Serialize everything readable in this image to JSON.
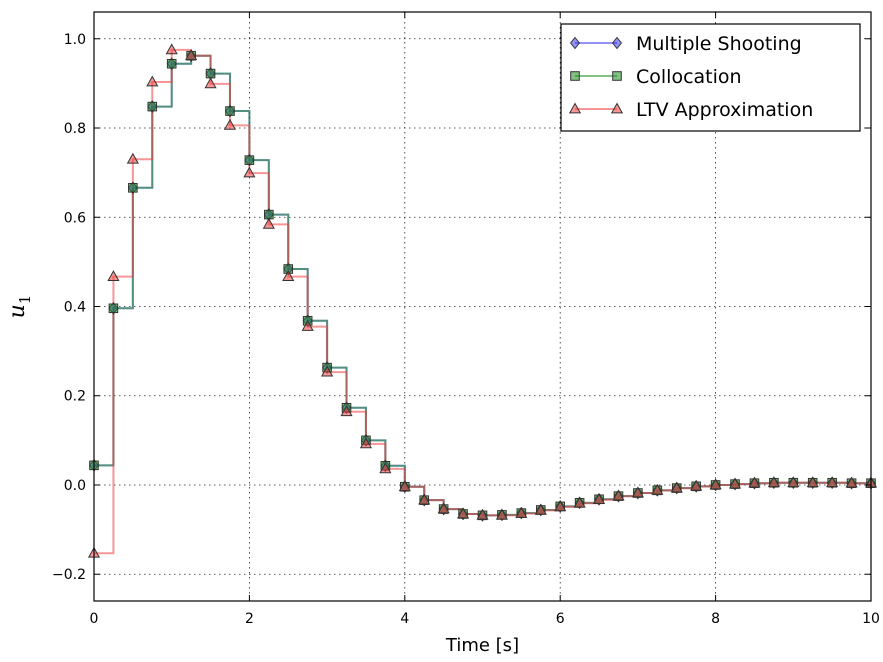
{
  "chart_data": {
    "type": "line",
    "title": "",
    "xlabel": "Time [s]",
    "ylabel": "u",
    "ylabel_sub": "1",
    "xlim": [
      0,
      10
    ],
    "ylim": [
      -0.26,
      1.06
    ],
    "xticks": [
      0,
      2,
      4,
      6,
      8,
      10
    ],
    "yticks": [
      -0.2,
      0.0,
      0.2,
      0.4,
      0.6,
      0.8,
      1.0
    ],
    "xtick_labels": [
      "0",
      "2",
      "4",
      "6",
      "8",
      "10"
    ],
    "ytick_labels": [
      "−0.2",
      "0.0",
      "0.2",
      "0.4",
      "0.6",
      "0.8",
      "1.0"
    ],
    "grid": true,
    "legend_position": "top-right",
    "step": "post",
    "x": [
      0.0,
      0.25,
      0.5,
      0.75,
      1.0,
      1.25,
      1.5,
      1.75,
      2.0,
      2.25,
      2.5,
      2.75,
      3.0,
      3.25,
      3.5,
      3.75,
      4.0,
      4.25,
      4.5,
      4.75,
      5.0,
      5.25,
      5.5,
      5.75,
      6.0,
      6.25,
      6.5,
      6.75,
      7.0,
      7.25,
      7.5,
      7.75,
      8.0,
      8.25,
      8.5,
      8.75,
      9.0,
      9.25,
      9.5,
      9.75,
      10.0
    ],
    "series": [
      {
        "name": "Multiple Shooting",
        "color": "#3a3aef",
        "marker": "diamond",
        "values": [
          0.044,
          0.396,
          0.666,
          0.848,
          0.944,
          0.962,
          0.922,
          0.838,
          0.728,
          0.606,
          0.484,
          0.368,
          0.263,
          0.173,
          0.1,
          0.043,
          -0.004,
          -0.034,
          -0.054,
          -0.065,
          -0.068,
          -0.067,
          -0.063,
          -0.056,
          -0.048,
          -0.04,
          -0.032,
          -0.025,
          -0.018,
          -0.012,
          -0.007,
          -0.003,
          0.0,
          0.002,
          0.004,
          0.005,
          0.005,
          0.005,
          0.005,
          0.004,
          0.004
        ]
      },
      {
        "name": "Collocation",
        "color": "#1e8c1e",
        "marker": "square",
        "values": [
          0.044,
          0.396,
          0.666,
          0.848,
          0.944,
          0.962,
          0.922,
          0.838,
          0.728,
          0.606,
          0.484,
          0.368,
          0.263,
          0.173,
          0.1,
          0.043,
          -0.004,
          -0.034,
          -0.054,
          -0.065,
          -0.068,
          -0.067,
          -0.063,
          -0.056,
          -0.048,
          -0.04,
          -0.032,
          -0.025,
          -0.018,
          -0.012,
          -0.007,
          -0.003,
          0.0,
          0.002,
          0.004,
          0.005,
          0.005,
          0.005,
          0.005,
          0.004,
          0.004
        ]
      },
      {
        "name": "LTV Approximation",
        "color": "#ee4040",
        "marker": "triangle",
        "values": [
          -0.153,
          0.467,
          0.73,
          0.903,
          0.975,
          0.962,
          0.899,
          0.806,
          0.699,
          0.584,
          0.467,
          0.355,
          0.253,
          0.164,
          0.092,
          0.036,
          -0.004,
          -0.034,
          -0.054,
          -0.065,
          -0.068,
          -0.068,
          -0.064,
          -0.057,
          -0.049,
          -0.041,
          -0.033,
          -0.025,
          -0.018,
          -0.012,
          -0.007,
          -0.003,
          0.0,
          0.002,
          0.004,
          0.005,
          0.005,
          0.005,
          0.005,
          0.004,
          0.004
        ]
      }
    ]
  }
}
